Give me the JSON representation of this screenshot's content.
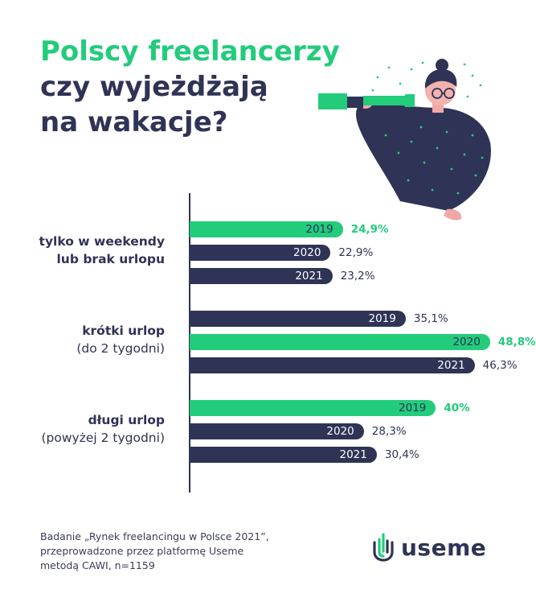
{
  "title": {
    "line1": "Polscy freelancerzy",
    "line2": "czy wyjeżdżają",
    "line3": "na wakacje?"
  },
  "colors": {
    "highlight": "#22cc7b",
    "bar": "#2f3355",
    "text": "#2f3355"
  },
  "chart_data": {
    "type": "bar",
    "orientation": "horizontal",
    "axis_range": [
      0,
      50
    ],
    "groups": [
      {
        "label_line1": "tylko w weekendy",
        "label_line2": "lub brak urlopu",
        "bars": [
          {
            "year": "2019",
            "value": 24.9,
            "label": "24,9%",
            "highlight": true
          },
          {
            "year": "2020",
            "value": 22.9,
            "label": "22,9%",
            "highlight": false
          },
          {
            "year": "2021",
            "value": 23.2,
            "label": "23,2%",
            "highlight": false
          }
        ]
      },
      {
        "label_line1": "krótki urlop",
        "label_line2": "(do 2 tygodni)",
        "bars": [
          {
            "year": "2019",
            "value": 35.1,
            "label": "35,1%",
            "highlight": false
          },
          {
            "year": "2020",
            "value": 48.8,
            "label": "48,8%",
            "highlight": true
          },
          {
            "year": "2021",
            "value": 46.3,
            "label": "46,3%",
            "highlight": false
          }
        ]
      },
      {
        "label_line1": "długi urlop",
        "label_line2": "(powyżej 2 tygodni)",
        "bars": [
          {
            "year": "2019",
            "value": 40,
            "label": "40%",
            "highlight": true
          },
          {
            "year": "2020",
            "value": 28.3,
            "label": "28,3%",
            "highlight": false
          },
          {
            "year": "2021",
            "value": 30.4,
            "label": "30,4%",
            "highlight": false
          }
        ]
      }
    ]
  },
  "source": {
    "line1": "Badanie „Rynek freelancingu w Polsce 2021”,",
    "line2": "przeprowadzone przez platformę Useme",
    "line3": "metodą CAWI, n=1159"
  },
  "logo": {
    "text": "useme",
    "icon": "useme-logo-icon"
  },
  "illustration": {
    "icon": "woman-with-spyglass-illustration"
  }
}
